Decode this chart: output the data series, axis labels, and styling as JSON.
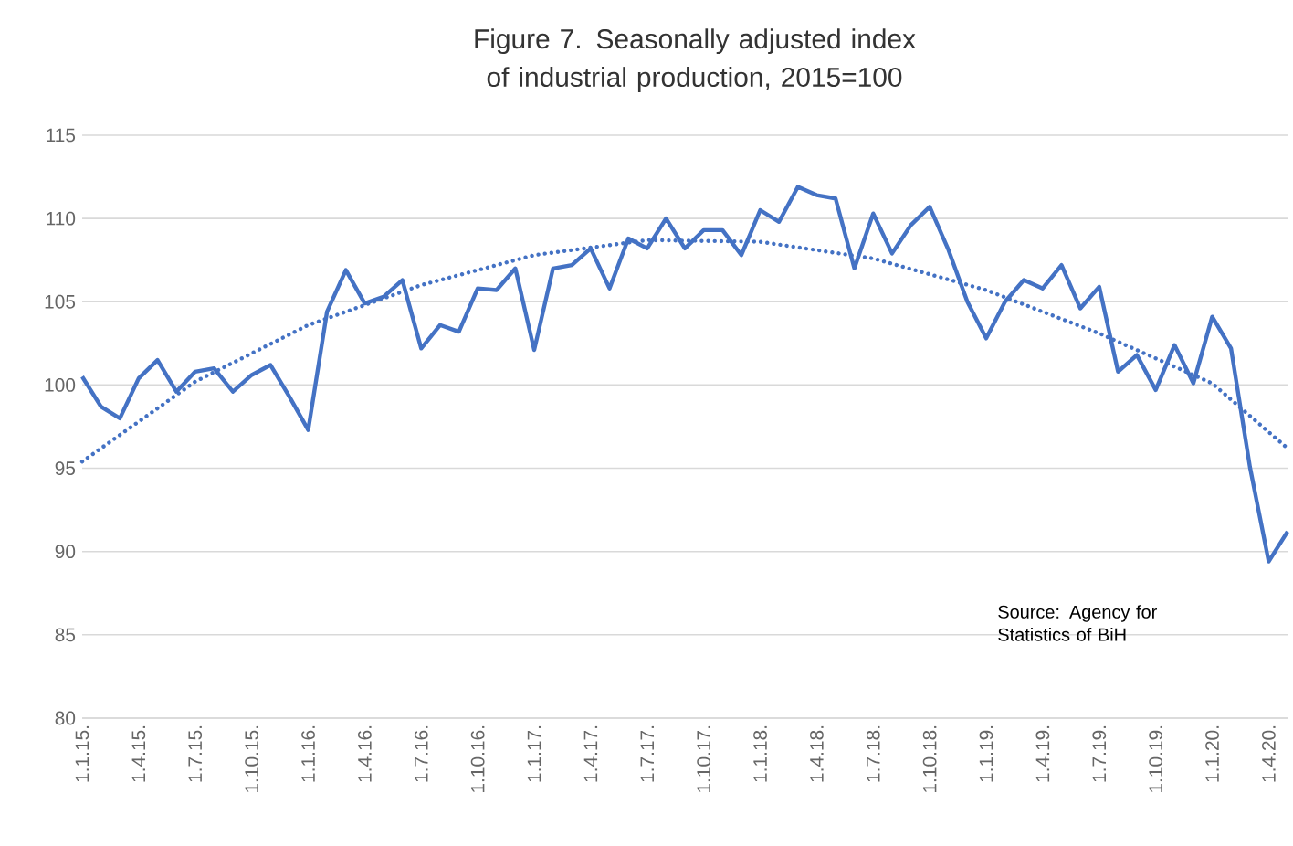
{
  "chart_data": {
    "type": "line",
    "title": "Figure 7. Seasonally adjusted index of industrial production, 2015=100",
    "categories": [
      "1.1.15.",
      null,
      null,
      "1.4.15.",
      null,
      null,
      "1.7.15.",
      null,
      null,
      "1.10.15.",
      null,
      null,
      "1.1.16.",
      null,
      null,
      "1.4.16.",
      null,
      null,
      "1.7.16.",
      null,
      null,
      "1.10.16.",
      null,
      null,
      "1.1.17.",
      null,
      null,
      "1.4.17.",
      null,
      null,
      "1.7.17.",
      null,
      null,
      "1.10.17.",
      null,
      null,
      "1.1.18.",
      null,
      null,
      "1.4.18.",
      null,
      null,
      "1.7.18.",
      null,
      null,
      "1.10.18.",
      null,
      null,
      "1.1.19.",
      null,
      null,
      "1.4.19.",
      null,
      null,
      "1.7.19.",
      null,
      null,
      "1.10.19.",
      null,
      null,
      "1.1.20.",
      null,
      null,
      "1.4.20.",
      null
    ],
    "series": [
      {
        "color": "#4472c4",
        "line_style": "solid",
        "values": [
          100.5,
          98.7,
          98.0,
          100.4,
          101.5,
          99.6,
          100.8,
          101.0,
          99.6,
          100.6,
          101.2,
          99.3,
          97.3,
          104.4,
          106.9,
          104.9,
          105.3,
          106.3,
          102.2,
          103.6,
          103.2,
          105.8,
          105.7,
          107.0,
          102.1,
          107.0,
          107.2,
          108.2,
          105.8,
          108.8,
          108.2,
          110.0,
          108.2,
          109.3,
          109.3,
          107.8,
          110.5,
          109.8,
          111.9,
          111.4,
          111.2,
          107.0,
          110.3,
          107.9,
          109.6,
          110.7,
          108.1,
          105.0,
          102.8,
          105.0,
          106.3,
          105.8,
          107.2,
          104.6,
          105.9,
          100.8,
          101.8,
          99.7,
          102.4,
          100.1,
          104.1,
          102.2,
          95.1,
          89.4,
          91.2
        ]
      },
      {
        "color": "#4472c4",
        "line_style": "dotted",
        "values": [
          95.4,
          null,
          null,
          null,
          null,
          null,
          100.2,
          null,
          null,
          null,
          null,
          null,
          103.6,
          null,
          null,
          null,
          null,
          null,
          106.0,
          null,
          null,
          null,
          null,
          null,
          107.8,
          null,
          null,
          null,
          null,
          null,
          108.7,
          null,
          null,
          null,
          null,
          null,
          108.6,
          null,
          null,
          null,
          null,
          null,
          107.6,
          null,
          null,
          null,
          null,
          null,
          105.7,
          null,
          null,
          null,
          null,
          null,
          103.1,
          null,
          null,
          null,
          null,
          null,
          100.1,
          null,
          null,
          null,
          96.2
        ]
      }
    ],
    "ylim": [
      80,
      115
    ],
    "yticks": [
      80,
      85,
      90,
      95,
      100,
      105,
      110,
      115
    ],
    "grid": "y",
    "marker": "none",
    "annotations": [
      "Source: Agency for Statistics of BiH"
    ]
  }
}
